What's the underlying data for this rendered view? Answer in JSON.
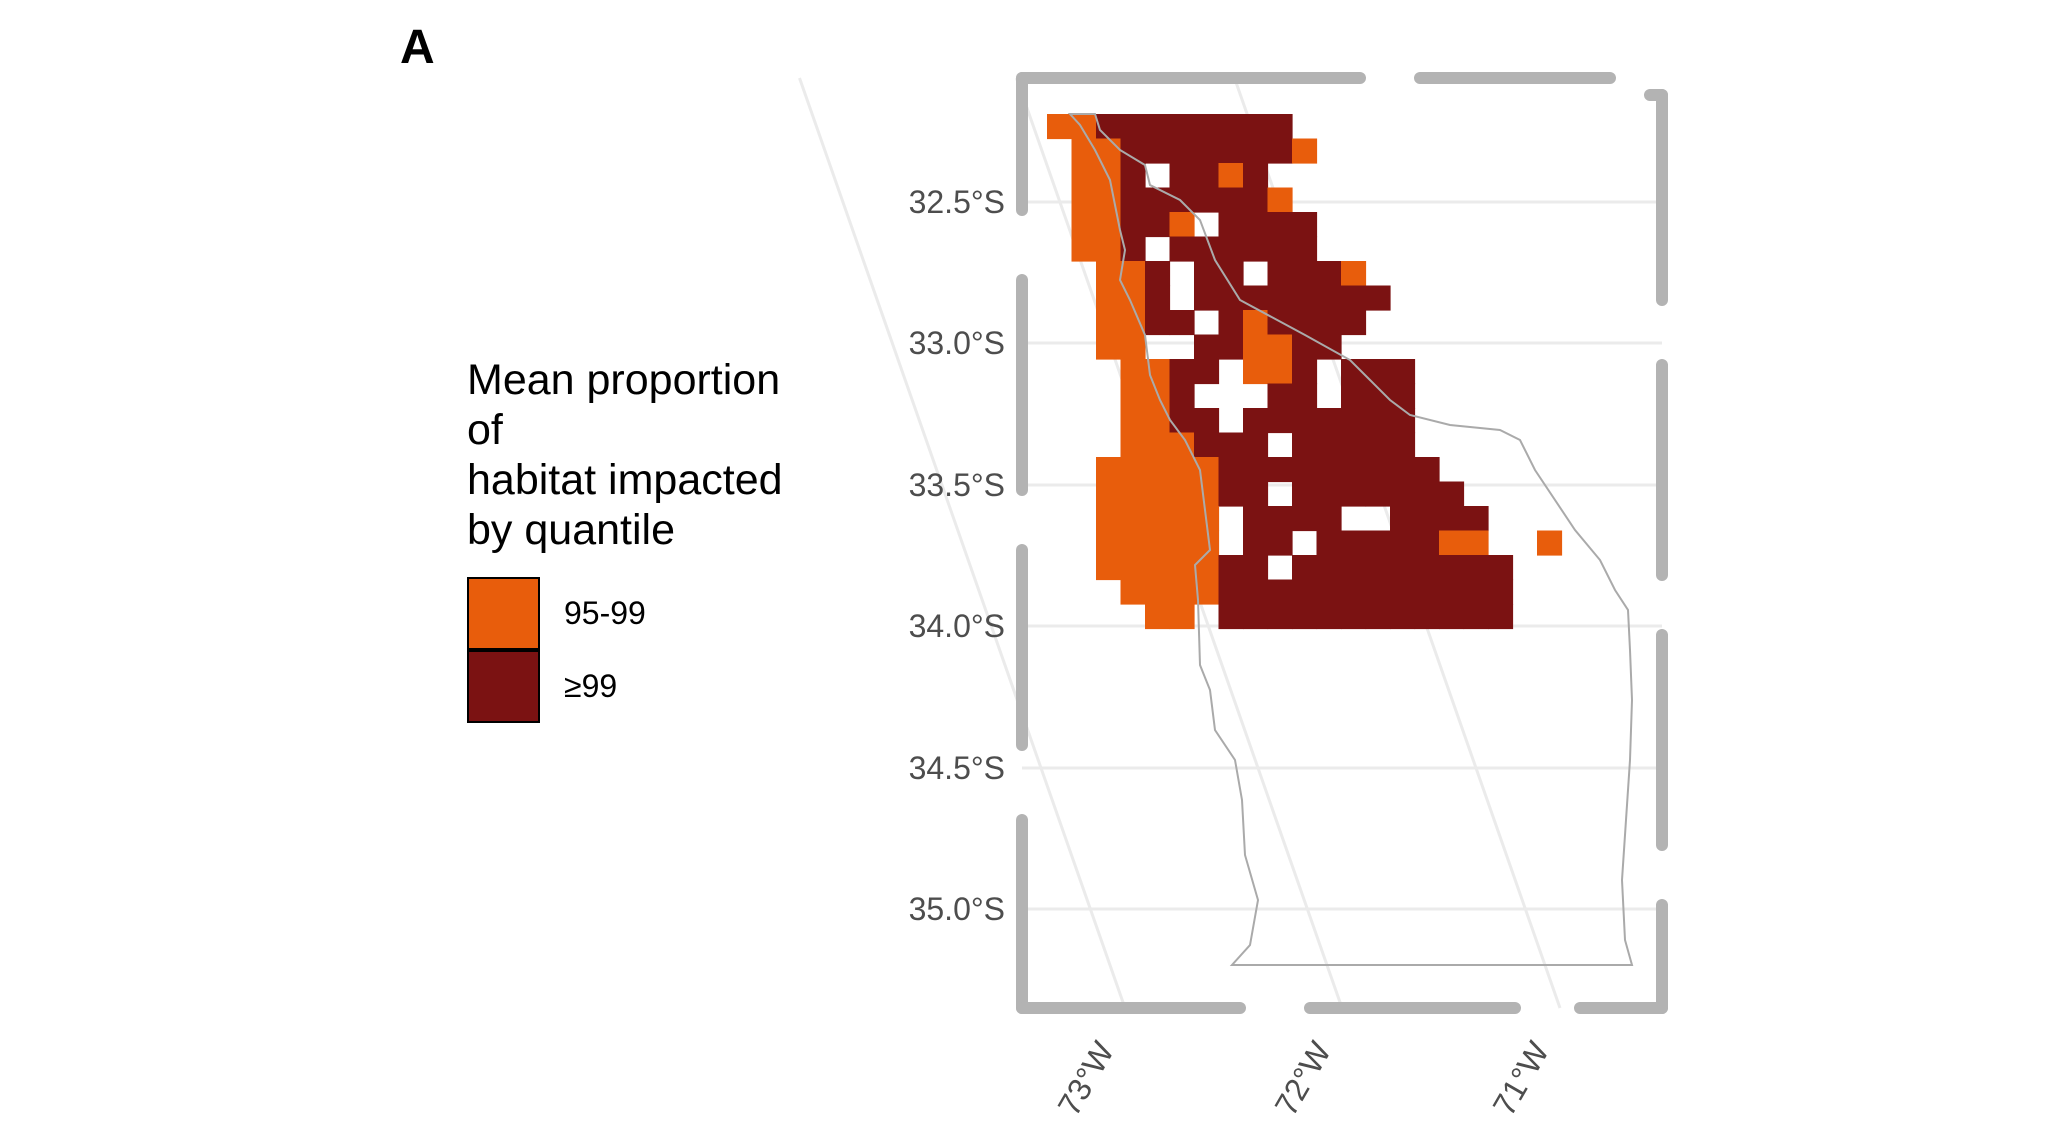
{
  "panel_label": "A",
  "legend": {
    "title": "Mean proportion\nof\nhabitat impacted\nby quantile",
    "items": [
      {
        "label": "95-99",
        "color": "#E85D0C"
      },
      {
        "label": "≥99",
        "color": "#7B1212"
      }
    ]
  },
  "map": {
    "lat_ticks": [
      "32.5°S",
      "33.0°S",
      "33.5°S",
      "34.0°S",
      "34.5°S",
      "35.0°S"
    ],
    "lon_ticks": [
      "73°W",
      "72°W",
      "71°W"
    ],
    "lat_range": [
      -35.25,
      -32.2
    ],
    "lon_range": [
      -73.2,
      -70.5
    ],
    "graticule": true,
    "colors": {
      "frame": "#b3b3b3",
      "grid": "#ebebeb",
      "coastline": "#aaaaaa",
      "background": "#ffffff"
    },
    "grid_rows": [
      "11MMMMMMMM....",
      ".22MMMMMMM1...",
      ".22M.MM1M.....",
      ".22MMMMMM1....",
      ".22MM1.MMMM...",
      ".22M.MMMMMM...",
      "..22M.MM.MMM1.",
      "..22M.MMMMMMMM",
      "..22MM.M1MMMM.",
      "..22..MM11MM..",
      "...22MM.11M.MMM",
      "...22M...MM.MMM",
      "...22MM.MMMMMMM",
      "...222MMM.MMMMM",
      "..11111MMMMMMMMM",
      "..11111MM.MMMMMMM",
      "..11111.MMMM..MMMM",
      "..11111.MM.MMMMM11..1",
      "..11111MM.MMMMMMMMM",
      "...1111MMMMMMMMMMMM",
      "....11.MMMMMMMMMMMM"
    ]
  },
  "chart_data": {
    "type": "heatmap",
    "title": "",
    "xlabel": "",
    "ylabel": "",
    "legend_title": "Mean proportion of habitat impacted by quantile",
    "categories": [
      "95-99",
      "≥99"
    ],
    "x_ticks": [
      "73°W",
      "72°W",
      "71°W"
    ],
    "y_ticks": [
      "32.5°S",
      "33.0°S",
      "33.5°S",
      "34.0°S",
      "34.5°S",
      "35.0°S"
    ]
  }
}
